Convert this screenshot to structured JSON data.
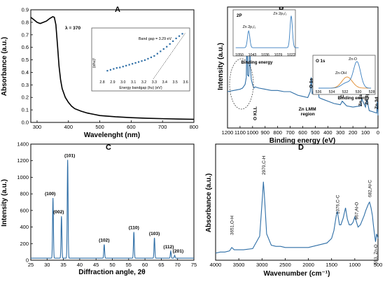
{
  "chart_data": [
    {
      "panel": "A",
      "type": "line",
      "xlabel": "Wavelenght (nm)",
      "ylabel": "Absorbance (a.u.)",
      "xlim": [
        280,
        800
      ],
      "ylim": [
        0.0,
        0.9
      ],
      "xticks": [
        "300",
        "400",
        "500",
        "600",
        "700",
        "800"
      ],
      "yticks": [
        "0.0",
        "0.1",
        "0.2",
        "0.3",
        "0.4",
        "0.5",
        "0.6",
        "0.7",
        "0.8",
        "0.9"
      ],
      "series": [
        {
          "x": [
            280,
            290,
            300,
            310,
            320,
            330,
            340,
            350,
            355,
            360,
            365,
            370,
            375,
            380,
            390,
            400,
            410,
            420,
            440,
            460,
            480,
            500,
            550,
            600,
            650,
            700,
            750,
            800
          ],
          "y": [
            0.84,
            0.82,
            0.8,
            0.79,
            0.8,
            0.81,
            0.83,
            0.845,
            0.84,
            0.78,
            0.62,
            0.45,
            0.34,
            0.27,
            0.2,
            0.16,
            0.13,
            0.11,
            0.09,
            0.075,
            0.065,
            0.055,
            0.045,
            0.038,
            0.033,
            0.03,
            0.027,
            0.025
          ]
        }
      ],
      "annotations": [
        {
          "text": "λ = 370",
          "x": 352,
          "y": 0.845
        }
      ],
      "inset": {
        "type": "scatter",
        "xlabel": "Energy bandgap (hυ) (eV)",
        "ylabel": "(αhυ)²",
        "annotation": "Band gap = 3.29 eV",
        "xticks": [
          "2.8",
          "2.9",
          "3.0",
          "3.1",
          "3.2",
          "3.3",
          "3.4",
          "3.5",
          "3.6"
        ],
        "x": [
          2.85,
          2.88,
          2.91,
          2.94,
          2.97,
          3.0,
          3.03,
          3.06,
          3.09,
          3.12,
          3.15,
          3.18,
          3.21,
          3.24,
          3.27,
          3.3,
          3.33,
          3.36,
          3.39,
          3.42,
          3.45,
          3.48,
          3.51,
          3.54,
          3.57
        ],
        "y": [
          0.18,
          0.2,
          0.22,
          0.24,
          0.25,
          0.27,
          0.29,
          0.31,
          0.33,
          0.35,
          0.37,
          0.39,
          0.41,
          0.44,
          0.47,
          0.5,
          0.55,
          0.6,
          0.65,
          0.7,
          0.76,
          0.82,
          0.88,
          0.93,
          0.98
        ],
        "tangent": [
          [
            3.29,
            0.0
          ],
          [
            3.6,
            1.0
          ]
        ]
      }
    },
    {
      "panel": "B",
      "type": "line",
      "xlabel": "Binding energy (eV)",
      "ylabel": "Intensity (a.u.)",
      "xlim": [
        1200,
        0
      ],
      "xticks": [
        "1200",
        "1100",
        "1000",
        "900",
        "800",
        "700",
        "600",
        "500",
        "400",
        "300",
        "200",
        "100",
        "0"
      ],
      "series": [
        {
          "x": [
            1200,
            1150,
            1100,
            1080,
            1060,
            1050,
            1044,
            1040,
            1030,
            1022,
            1018,
            1010,
            1000,
            990,
            980,
            950,
            900,
            850,
            800,
            750,
            700,
            680,
            660,
            640,
            600,
            560,
            540,
            532,
            525,
            500,
            498,
            495,
            480,
            470,
            450,
            400,
            350,
            300,
            285,
            250,
            200,
            140,
            130,
            100,
            90,
            88,
            70,
            40,
            10,
            5,
            0
          ],
          "y": [
            0.3,
            0.31,
            0.32,
            0.33,
            0.36,
            0.42,
            0.9,
            0.44,
            0.43,
            0.97,
            0.5,
            0.4,
            0.36,
            0.33,
            0.34,
            0.33,
            0.32,
            0.31,
            0.31,
            0.3,
            0.3,
            0.29,
            0.28,
            0.27,
            0.26,
            0.25,
            0.3,
            0.42,
            0.28,
            0.36,
            0.4,
            0.3,
            0.34,
            0.25,
            0.24,
            0.22,
            0.2,
            0.19,
            0.22,
            0.18,
            0.17,
            0.18,
            0.24,
            0.17,
            0.22,
            0.23,
            0.14,
            0.13,
            0.12,
            0.22,
            0.1
          ]
        }
      ],
      "annotations": [
        {
          "text": "O KLL",
          "x": 980
        },
        {
          "text": "Zn LMM",
          "x": 560
        },
        {
          "text": "region",
          "x": 560
        },
        {
          "text": "O 1s",
          "x": 532
        },
        {
          "text": "C 1s",
          "x": 285
        },
        {
          "text": "Zn 3s",
          "x": 140
        },
        {
          "text": "Zn 3p",
          "x": 88
        },
        {
          "text": "Zn 3d",
          "x": 10
        }
      ],
      "insets": [
        {
          "title": "2P",
          "xlabel": "Binding energy",
          "xticks": [
            "1050",
            "1043",
            "1036",
            "1029",
            "1022"
          ],
          "peaks": [
            {
              "label": "Zn 2p₁/₂",
              "x": 1045
            },
            {
              "label": "Zn 2p₃/₂",
              "x": 1022
            }
          ]
        },
        {
          "title": "O 1s",
          "xlabel": "Binding energy",
          "xticks": [
            "536",
            "534",
            "532",
            "530",
            "528"
          ],
          "peaks": [
            {
              "label": "Zn-OH",
              "x": 531.7
            },
            {
              "label": "Zn-O",
              "x": 530.2
            }
          ]
        }
      ]
    },
    {
      "panel": "C",
      "type": "line",
      "xlabel": "Diffraction angle, 2θ",
      "ylabel": "Intensity (a.u.)",
      "xlim": [
        25,
        75
      ],
      "ylim": [
        0,
        1400
      ],
      "xticks": [
        "25",
        "30",
        "35",
        "40",
        "45",
        "50",
        "55",
        "60",
        "65",
        "70",
        "75"
      ],
      "yticks": [
        "0",
        "200",
        "400",
        "600",
        "800",
        "1000",
        "1200",
        "1400"
      ],
      "peaks": [
        {
          "label": "(100)",
          "x": 31.8,
          "y": 750
        },
        {
          "label": "(002)",
          "x": 34.4,
          "y": 530
        },
        {
          "label": "(101)",
          "x": 36.3,
          "y": 1210
        },
        {
          "label": "(102)",
          "x": 47.5,
          "y": 190
        },
        {
          "label": "(110)",
          "x": 56.6,
          "y": 340
        },
        {
          "label": "(103)",
          "x": 62.9,
          "y": 270
        },
        {
          "label": "(112)",
          "x": 67.9,
          "y": 110
        },
        {
          "label": "(201)",
          "x": 69.1,
          "y": 60
        }
      ],
      "baseline": 25
    },
    {
      "panel": "D",
      "type": "line",
      "xlabel": "Wavenumber (cm⁻¹)",
      "ylabel": "Absorbance (a.u.)",
      "xlim": [
        4000,
        500
      ],
      "xticks": [
        "4000",
        "3500",
        "3000",
        "2500",
        "2000",
        "1500",
        "1000",
        "500"
      ],
      "series": [
        {
          "x": [
            4000,
            3900,
            3800,
            3700,
            3651,
            3600,
            3400,
            3200,
            3050,
            2990,
            2970,
            2950,
            2900,
            2800,
            2700,
            2600,
            2500,
            2400,
            2300,
            2200,
            2100,
            2000,
            1900,
            1800,
            1700,
            1600,
            1500,
            1450,
            1400,
            1376,
            1330,
            1300,
            1250,
            1200,
            1160,
            1120,
            1080,
            1040,
            1000,
            967,
            930,
            880,
            840,
            800,
            760,
            720,
            700,
            682,
            650,
            620,
            600,
            570,
            553,
            530,
            500
          ],
          "y": [
            0.05,
            0.06,
            0.06,
            0.07,
            0.1,
            0.08,
            0.08,
            0.09,
            0.2,
            0.55,
            0.68,
            0.57,
            0.22,
            0.12,
            0.11,
            0.11,
            0.1,
            0.1,
            0.1,
            0.1,
            0.1,
            0.1,
            0.11,
            0.12,
            0.13,
            0.14,
            0.18,
            0.25,
            0.38,
            0.42,
            0.3,
            0.3,
            0.36,
            0.45,
            0.35,
            0.3,
            0.3,
            0.32,
            0.37,
            0.33,
            0.28,
            0.3,
            0.34,
            0.38,
            0.43,
            0.47,
            0.49,
            0.5,
            0.45,
            0.38,
            0.3,
            0.2,
            0.15,
            0.22,
            0.18
          ]
        }
      ],
      "annotations": [
        {
          "text": "3651,O-H",
          "x": 3651
        },
        {
          "text": "2970,C-H",
          "x": 2970
        },
        {
          "text": "1376,C-C",
          "x": 1376
        },
        {
          "text": "967,Al-O",
          "x": 967
        },
        {
          "text": "682,Al-C",
          "x": 682
        },
        {
          "text": "553, Zn-O",
          "x": 553
        }
      ]
    }
  ],
  "colors": {
    "line": "#2e6ea6",
    "inset_orange": "#e08a2c",
    "inset_blue": "#3a7fc0"
  }
}
